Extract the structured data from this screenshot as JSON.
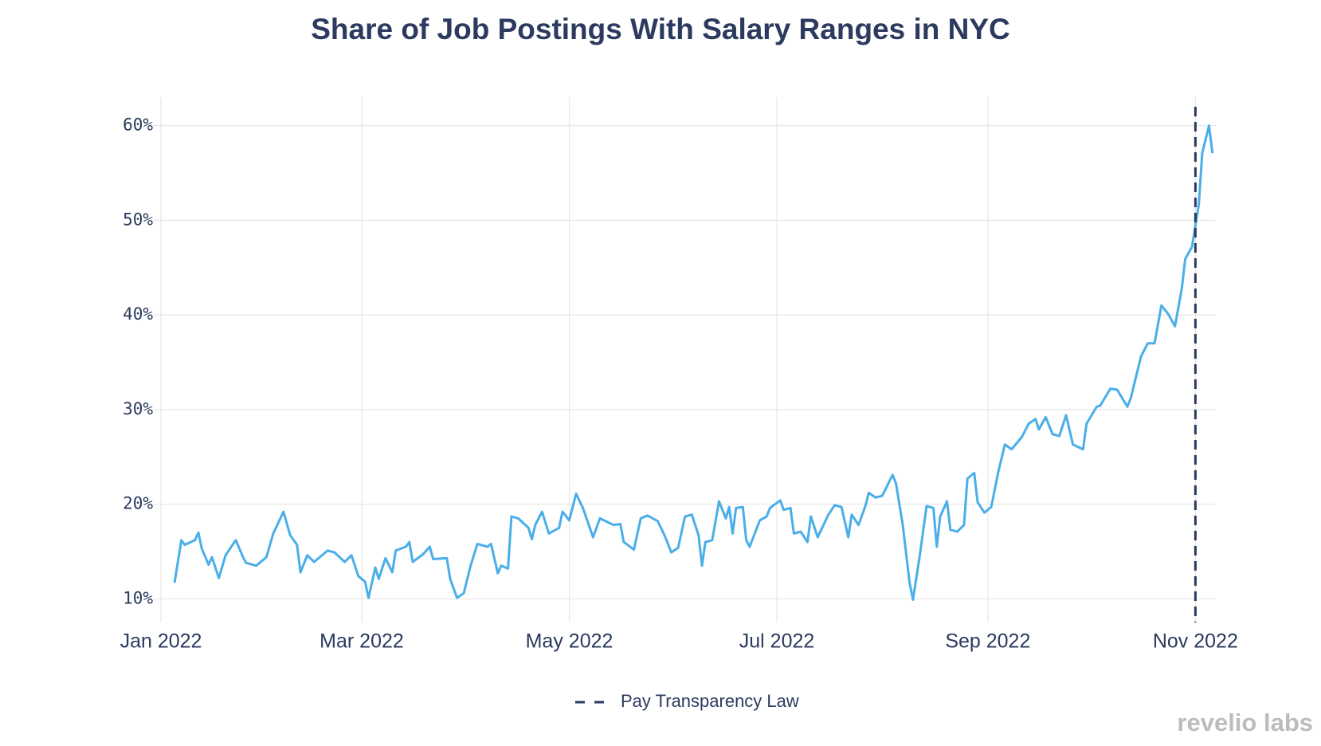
{
  "chart_data": {
    "type": "line",
    "title": "Share of Job Postings With Salary Ranges in NYC",
    "x": [
      "2022-01-05",
      "2022-01-07",
      "2022-01-08",
      "2022-01-11",
      "2022-01-12",
      "2022-01-13",
      "2022-01-15",
      "2022-01-16",
      "2022-01-18",
      "2022-01-20",
      "2022-01-23",
      "2022-01-25",
      "2022-01-26",
      "2022-01-29",
      "2022-02-01",
      "2022-02-03",
      "2022-02-06",
      "2022-02-08",
      "2022-02-10",
      "2022-02-11",
      "2022-02-13",
      "2022-02-15",
      "2022-02-19",
      "2022-02-21",
      "2022-02-24",
      "2022-02-26",
      "2022-02-28",
      "2022-03-02",
      "2022-03-03",
      "2022-03-05",
      "2022-03-06",
      "2022-03-08",
      "2022-03-10",
      "2022-03-11",
      "2022-03-14",
      "2022-03-15",
      "2022-03-16",
      "2022-03-19",
      "2022-03-21",
      "2022-03-22",
      "2022-03-26",
      "2022-03-27",
      "2022-03-29",
      "2022-03-31",
      "2022-04-02",
      "2022-04-04",
      "2022-04-07",
      "2022-04-08",
      "2022-04-10",
      "2022-04-11",
      "2022-04-13",
      "2022-04-14",
      "2022-04-16",
      "2022-04-19",
      "2022-04-20",
      "2022-04-21",
      "2022-04-23",
      "2022-04-25",
      "2022-04-28",
      "2022-04-29",
      "2022-05-01",
      "2022-05-03",
      "2022-05-05",
      "2022-05-08",
      "2022-05-10",
      "2022-05-14",
      "2022-05-16",
      "2022-05-17",
      "2022-05-20",
      "2022-05-22",
      "2022-05-24",
      "2022-05-27",
      "2022-05-29",
      "2022-05-31",
      "2022-06-02",
      "2022-06-04",
      "2022-06-06",
      "2022-06-08",
      "2022-06-09",
      "2022-06-10",
      "2022-06-12",
      "2022-06-14",
      "2022-06-16",
      "2022-06-17",
      "2022-06-18",
      "2022-06-19",
      "2022-06-21",
      "2022-06-22",
      "2022-06-23",
      "2022-06-26",
      "2022-06-28",
      "2022-06-29",
      "2022-07-02",
      "2022-07-03",
      "2022-07-05",
      "2022-07-06",
      "2022-07-08",
      "2022-07-10",
      "2022-07-11",
      "2022-07-13",
      "2022-07-16",
      "2022-07-18",
      "2022-07-20",
      "2022-07-22",
      "2022-07-23",
      "2022-07-25",
      "2022-07-27",
      "2022-07-28",
      "2022-07-30",
      "2022-08-01",
      "2022-08-04",
      "2022-08-05",
      "2022-08-07",
      "2022-08-09",
      "2022-08-10",
      "2022-08-12",
      "2022-08-14",
      "2022-08-16",
      "2022-08-17",
      "2022-08-18",
      "2022-08-20",
      "2022-08-21",
      "2022-08-23",
      "2022-08-25",
      "2022-08-26",
      "2022-08-28",
      "2022-08-29",
      "2022-08-31",
      "2022-09-02",
      "2022-09-04",
      "2022-09-06",
      "2022-09-08",
      "2022-09-11",
      "2022-09-13",
      "2022-09-15",
      "2022-09-16",
      "2022-09-18",
      "2022-09-20",
      "2022-09-22",
      "2022-09-24",
      "2022-09-26",
      "2022-09-29",
      "2022-09-30",
      "2022-10-03",
      "2022-10-04",
      "2022-10-07",
      "2022-10-09",
      "2022-10-12",
      "2022-10-13",
      "2022-10-16",
      "2022-10-18",
      "2022-10-20",
      "2022-10-22",
      "2022-10-24",
      "2022-10-26",
      "2022-10-28",
      "2022-10-29",
      "2022-10-31",
      "2022-11-02",
      "2022-11-03",
      "2022-11-05",
      "2022-11-06"
    ],
    "series": [
      {
        "color": "#4aaee8",
        "values": [
          11.7,
          16.2,
          15.7,
          16.2,
          17.0,
          15.3,
          13.6,
          14.4,
          12.2,
          14.6,
          16.2,
          14.5,
          13.8,
          13.5,
          14.4,
          16.9,
          19.2,
          16.7,
          15.7,
          12.8,
          14.6,
          13.9,
          15.1,
          14.9,
          13.9,
          14.6,
          12.4,
          11.8,
          10.1,
          13.3,
          12.1,
          14.3,
          12.8,
          15.1,
          15.5,
          16.0,
          13.9,
          14.7,
          15.5,
          14.2,
          14.3,
          12.1,
          10.1,
          10.6,
          13.5,
          15.8,
          15.5,
          15.8,
          12.7,
          13.5,
          13.2,
          18.7,
          18.5,
          17.5,
          16.3,
          17.8,
          19.2,
          16.9,
          17.5,
          19.2,
          18.3,
          21.1,
          19.6,
          16.5,
          18.5,
          17.8,
          17.9,
          16.0,
          15.2,
          18.5,
          18.8,
          18.2,
          16.7,
          14.9,
          15.4,
          18.7,
          18.9,
          16.7,
          13.5,
          16.0,
          16.2,
          20.3,
          18.5,
          19.7,
          16.9,
          19.6,
          19.7,
          16.2,
          15.5,
          18.3,
          18.7,
          19.6,
          20.4,
          19.4,
          19.6,
          16.9,
          17.1,
          16.0,
          18.7,
          16.5,
          18.8,
          19.9,
          19.7,
          16.5,
          18.9,
          17.8,
          19.8,
          21.2,
          20.7,
          20.9,
          23.1,
          22.2,
          17.8,
          11.7,
          9.9,
          14.6,
          19.8,
          19.6,
          15.5,
          18.7,
          20.3,
          17.3,
          17.1,
          17.8,
          22.7,
          23.3,
          20.2,
          19.1,
          19.7,
          23.3,
          26.3,
          25.8,
          27.1,
          28.5,
          29.0,
          27.9,
          29.2,
          27.4,
          27.2,
          29.4,
          26.3,
          25.8,
          28.5,
          30.3,
          30.4,
          32.2,
          32.1,
          30.3,
          31.2,
          35.6,
          37.0,
          37.0,
          41.0,
          40.1,
          38.8,
          42.8,
          45.9,
          47.2,
          51.7,
          57.1,
          60.0,
          57.1
        ]
      }
    ],
    "xlim": [
      "2022-01-01",
      "2022-11-07"
    ],
    "xticks": [
      {
        "value": "2022-01-01",
        "label": "Jan 2022"
      },
      {
        "value": "2022-03-01",
        "label": "Mar 2022"
      },
      {
        "value": "2022-05-01",
        "label": "May 2022"
      },
      {
        "value": "2022-07-01",
        "label": "Jul 2022"
      },
      {
        "value": "2022-09-01",
        "label": "Sep 2022"
      },
      {
        "value": "2022-11-01",
        "label": "Nov 2022"
      }
    ],
    "ylim": [
      7.5,
      63
    ],
    "yticks": [
      {
        "value": 10,
        "label": "10%"
      },
      {
        "value": 20,
        "label": "20%"
      },
      {
        "value": 30,
        "label": "30%"
      },
      {
        "value": 40,
        "label": "40%"
      },
      {
        "value": 50,
        "label": "50%"
      },
      {
        "value": 60,
        "label": "60%"
      }
    ],
    "grid": true,
    "annotations": [
      {
        "x": "2022-11-01",
        "label": "Pay Transparency Law",
        "color": "#2b3a5e"
      }
    ],
    "watermark": "revelio labs"
  }
}
